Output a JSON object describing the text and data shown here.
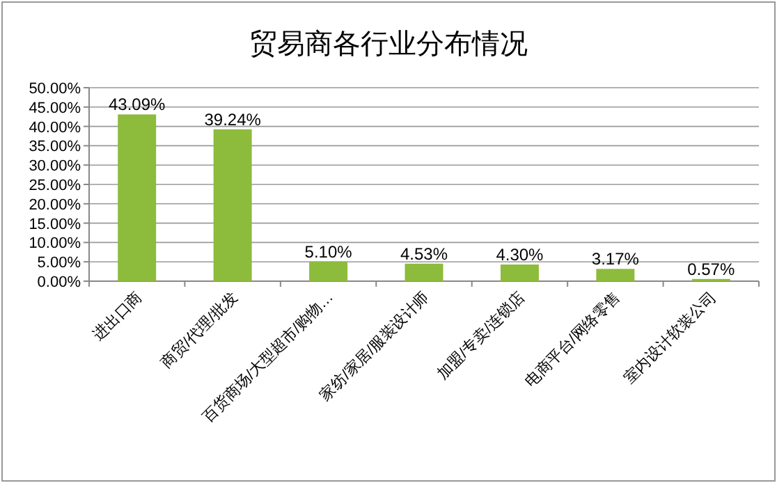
{
  "chart_data": {
    "type": "bar",
    "title": "贸易商各行业分布情况",
    "categories": [
      "进出口商",
      "商贸/代理/批发",
      "百货商场/大型超市/购物…",
      "家纺/家居/服装设计师",
      "加盟/专卖/连锁店",
      "电商平台/网络零售",
      "室内设计软装公司"
    ],
    "values": [
      43.09,
      39.24,
      5.1,
      4.53,
      4.3,
      3.17,
      0.57
    ],
    "value_labels": [
      "43.09%",
      "39.24%",
      "5.10%",
      "4.53%",
      "4.30%",
      "3.17%",
      "0.57%"
    ],
    "color": "#8dbb3c",
    "ylim": [
      0,
      50
    ],
    "yticks": [
      {
        "value": 0,
        "label": "0.00%"
      },
      {
        "value": 5,
        "label": "5.00%"
      },
      {
        "value": 10,
        "label": "10.00%"
      },
      {
        "value": 15,
        "label": "15.00%"
      },
      {
        "value": 20,
        "label": "20.00%"
      },
      {
        "value": 25,
        "label": "25.00%"
      },
      {
        "value": 30,
        "label": "30.00%"
      },
      {
        "value": 35,
        "label": "35.00%"
      },
      {
        "value": 40,
        "label": "40.00%"
      },
      {
        "value": 45,
        "label": "45.00%"
      },
      {
        "value": 50,
        "label": "50.00%"
      }
    ],
    "grid": "y"
  }
}
